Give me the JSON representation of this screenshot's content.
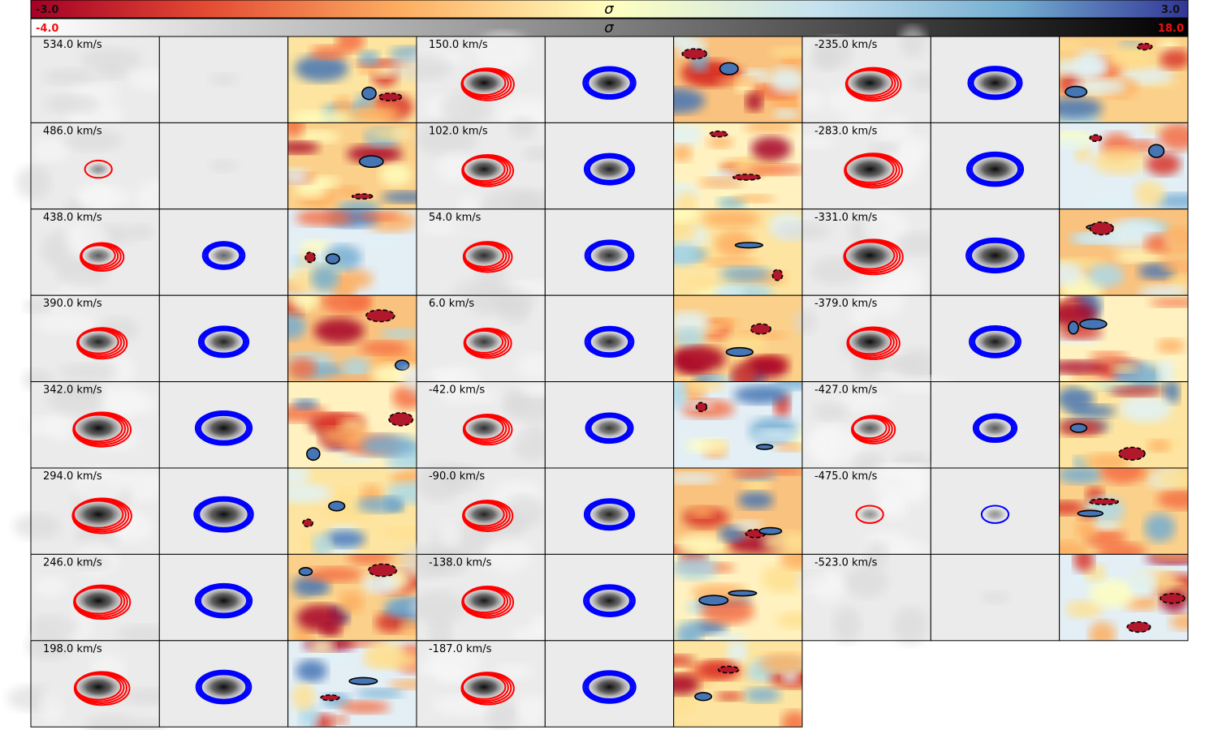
{
  "colorbars": {
    "residual": {
      "label": "σ",
      "min_label": "-3.0",
      "max_label": "3.0",
      "colormap": "RdYlBu",
      "min_color": "#111111",
      "max_color": "#111111"
    },
    "model": {
      "label": "σ",
      "min_label": "-4.0",
      "max_label": "18.0",
      "colormap": "gray_r",
      "min_color": "#ee1111",
      "max_color": "#ee1111"
    }
  },
  "contour_colors": {
    "data": "#ff0000",
    "model": "#0000ff",
    "residual": "#000000"
  },
  "chart_data": {
    "type": "heatmap",
    "title": "",
    "panel_columns": [
      "data",
      "model",
      "residual"
    ],
    "units": "km/s",
    "channels": [
      {
        "label": "534.0 km/s",
        "velocity": 534.0,
        "data_flux": 0.0,
        "model_flux": 0.0
      },
      {
        "label": "486.0 km/s",
        "velocity": 486.0,
        "data_flux": 0.1,
        "model_flux": 0.0
      },
      {
        "label": "438.0 km/s",
        "velocity": 438.0,
        "data_flux": 0.35,
        "model_flux": 0.3
      },
      {
        "label": "390.0 km/s",
        "velocity": 390.0,
        "data_flux": 0.6,
        "model_flux": 0.6
      },
      {
        "label": "342.0 km/s",
        "velocity": 342.0,
        "data_flux": 0.9,
        "model_flux": 0.85
      },
      {
        "label": "294.0 km/s",
        "velocity": 294.0,
        "data_flux": 0.95,
        "model_flux": 0.95
      },
      {
        "label": "246.0 km/s",
        "velocity": 246.0,
        "data_flux": 0.85,
        "model_flux": 0.85
      },
      {
        "label": "198.0 km/s",
        "velocity": 198.0,
        "data_flux": 0.8,
        "model_flux": 0.8
      },
      {
        "label": "150.0 km/s",
        "velocity": 150.0,
        "data_flux": 0.7,
        "model_flux": 0.7
      },
      {
        "label": "102.0 km/s",
        "velocity": 102.0,
        "data_flux": 0.65,
        "model_flux": 0.6
      },
      {
        "label": "54.0 km/s",
        "velocity": 54.0,
        "data_flux": 0.55,
        "model_flux": 0.55
      },
      {
        "label": "6.0 km/s",
        "velocity": 6.0,
        "data_flux": 0.5,
        "model_flux": 0.55
      },
      {
        "label": "-42.0 km/s",
        "velocity": -42.0,
        "data_flux": 0.55,
        "model_flux": 0.5
      },
      {
        "label": "-90.0 km/s",
        "velocity": -90.0,
        "data_flux": 0.6,
        "model_flux": 0.6
      },
      {
        "label": "-138.0 km/s",
        "velocity": -138.0,
        "data_flux": 0.65,
        "model_flux": 0.65
      },
      {
        "label": "-187.0 km/s",
        "velocity": -187.0,
        "data_flux": 0.7,
        "model_flux": 0.7
      },
      {
        "label": "-235.0 km/s",
        "velocity": -235.0,
        "data_flux": 0.8,
        "model_flux": 0.75
      },
      {
        "label": "-283.0 km/s",
        "velocity": -283.0,
        "data_flux": 0.9,
        "model_flux": 0.85
      },
      {
        "label": "-331.0 km/s",
        "velocity": -331.0,
        "data_flux": 0.95,
        "model_flux": 0.9
      },
      {
        "label": "-379.0 km/s",
        "velocity": -379.0,
        "data_flux": 0.7,
        "model_flux": 0.65
      },
      {
        "label": "-427.0 km/s",
        "velocity": -427.0,
        "data_flux": 0.35,
        "model_flux": 0.35
      },
      {
        "label": "-475.0 km/s",
        "velocity": -475.0,
        "data_flux": 0.1,
        "model_flux": 0.1
      },
      {
        "label": "-523.0 km/s",
        "velocity": -523.0,
        "data_flux": 0.0,
        "model_flux": 0.0
      }
    ]
  }
}
